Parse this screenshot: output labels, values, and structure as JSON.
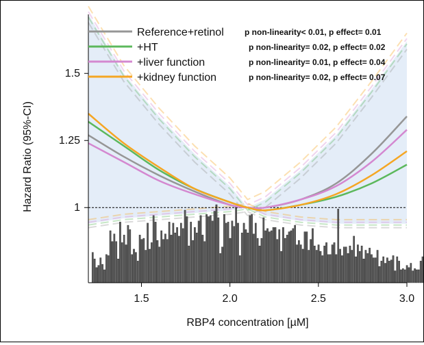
{
  "chart_data": {
    "type": "line",
    "xlabel": "RBP4 concentration [µM]",
    "ylabel": "Hazard Ratio (95%-CI)",
    "xlim": [
      1.2,
      3.0
    ],
    "ylim": [
      0.72,
      1.72
    ],
    "x_ticks": [
      {
        "value": 1.5,
        "label": "1.5"
      },
      {
        "value": 2.0,
        "label": "2.0"
      },
      {
        "value": 2.5,
        "label": "2.5"
      },
      {
        "value": 3.0,
        "label": "3.0"
      }
    ],
    "y_ticks": [
      {
        "value": 1.0,
        "label": "1"
      },
      {
        "value": 1.25,
        "label": "1.25"
      },
      {
        "value": 1.5,
        "label": "1.5"
      }
    ],
    "reference_line": 1.0,
    "x": [
      1.2,
      1.4,
      1.6,
      1.8,
      2.0,
      2.1,
      2.2,
      2.4,
      2.6,
      2.8,
      3.0
    ],
    "series": [
      {
        "name": "Reference+retinol",
        "color": "#969696",
        "p_text": "p non-linearity< 0.01, p effect= 0.01",
        "values": [
          1.27,
          1.19,
          1.12,
          1.06,
          1.01,
          1.0,
          1.0,
          1.03,
          1.09,
          1.2,
          1.34
        ]
      },
      {
        "name": "+HT",
        "color": "#5cb85c",
        "p_text": "p non-linearity= 0.02, p effect= 0.02",
        "values": [
          1.32,
          1.23,
          1.14,
          1.07,
          1.02,
          1.0,
          0.99,
          1.01,
          1.04,
          1.09,
          1.16
        ]
      },
      {
        "name": "+liver function",
        "color": "#d488d0",
        "p_text": "p non-linearity= 0.01, p effect= 0.04",
        "values": [
          1.24,
          1.17,
          1.1,
          1.05,
          1.01,
          1.0,
          1.0,
          1.03,
          1.08,
          1.17,
          1.29
        ]
      },
      {
        "name": "+kidney function",
        "color": "#f5a623",
        "p_text": "p non-linearity= 0.02, p effect= 0.07",
        "values": [
          1.35,
          1.24,
          1.15,
          1.07,
          1.02,
          1.0,
          0.99,
          1.01,
          1.05,
          1.12,
          1.21
        ]
      }
    ],
    "confidence_band": {
      "color": "#dbe7f5",
      "upper": [
        1.72,
        1.5,
        1.34,
        1.2,
        1.08,
        1.0,
        1.03,
        1.14,
        1.27,
        1.44,
        1.62
      ],
      "lower": [
        0.94,
        0.96,
        0.97,
        0.98,
        0.99,
        1.0,
        0.97,
        0.95,
        0.94,
        0.94,
        0.94
      ]
    },
    "histogram": {
      "color": "#5a5a5a",
      "bin_start": 1.22,
      "bin_width": 0.0111,
      "counts": [
        28,
        22,
        14,
        16,
        23,
        17,
        12,
        26,
        25,
        48,
        38,
        45,
        38,
        22,
        56,
        37,
        44,
        35,
        53,
        49,
        26,
        31,
        28,
        20,
        44,
        40,
        41,
        30,
        55,
        31,
        37,
        62,
        56,
        39,
        33,
        48,
        40,
        45,
        40,
        56,
        44,
        55,
        46,
        51,
        43,
        55,
        50,
        67,
        61,
        34,
        56,
        39,
        51,
        46,
        57,
        62,
        44,
        38,
        63,
        61,
        62,
        57,
        66,
        72,
        60,
        27,
        33,
        63,
        55,
        56,
        41,
        57,
        52,
        70,
        55,
        25,
        46,
        55,
        49,
        46,
        62,
        63,
        45,
        55,
        41,
        34,
        41,
        60,
        48,
        50,
        47,
        48,
        51,
        51,
        40,
        49,
        29,
        51,
        41,
        44,
        47,
        48,
        50,
        53,
        35,
        39,
        35,
        31,
        47,
        47,
        30,
        40,
        50,
        34,
        30,
        35,
        29,
        25,
        34,
        37,
        26,
        26,
        35,
        37,
        26,
        68,
        31,
        25,
        33,
        33,
        27,
        34,
        30,
        43,
        24,
        35,
        29,
        34,
        22,
        30,
        27,
        32,
        26,
        23,
        23,
        30,
        15,
        20,
        24,
        18,
        23,
        20,
        21,
        25,
        11,
        24,
        20,
        12,
        13,
        12,
        16,
        14,
        18,
        11,
        13,
        12,
        12,
        20,
        24,
        21,
        12,
        21,
        11,
        18,
        14,
        7,
        20,
        12,
        12,
        10,
        10,
        19,
        16,
        10,
        13,
        12,
        14,
        15,
        6,
        9,
        15,
        22,
        21,
        11,
        19,
        16,
        12,
        8,
        17,
        12,
        11,
        5,
        9,
        8,
        13,
        8,
        5,
        14,
        6,
        7,
        10,
        12,
        7,
        6,
        15,
        12,
        9,
        8,
        13,
        11,
        8,
        7,
        6
      ]
    }
  }
}
